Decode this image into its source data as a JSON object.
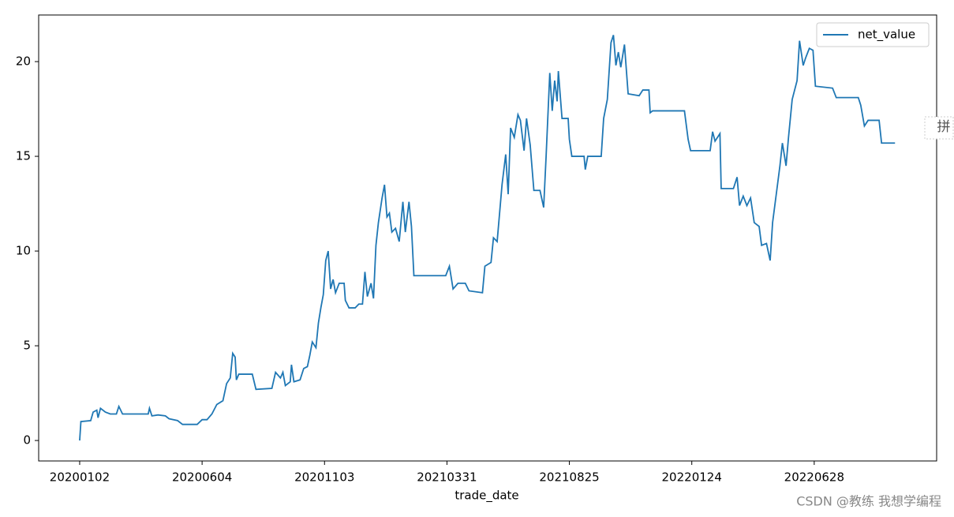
{
  "chart_data": {
    "type": "line",
    "x_label": "trade_date",
    "xlim": [
      -33.5,
      700
    ],
    "ylim": [
      -1.08,
      22.46
    ],
    "xticks": [
      {
        "value": 0,
        "label": "20200102"
      },
      {
        "value": 100,
        "label": "20200604"
      },
      {
        "value": 200,
        "label": "20201103"
      },
      {
        "value": 300,
        "label": "20210331"
      },
      {
        "value": 400,
        "label": "20210825"
      },
      {
        "value": 500,
        "label": "20220124"
      },
      {
        "value": 600,
        "label": "20220628"
      }
    ],
    "yticks": [
      0,
      5,
      10,
      15,
      20
    ],
    "legend": "upper right",
    "series": [
      {
        "name": "net_value",
        "color": "#1f77b4",
        "x": [
          0,
          1,
          9,
          11,
          14,
          15,
          17,
          21,
          25,
          30,
          32,
          35,
          38,
          56,
          57,
          59,
          64,
          70,
          73,
          80,
          84,
          96,
          100,
          104,
          108,
          112,
          117,
          120,
          123,
          125,
          127,
          128,
          130,
          141,
          144,
          157,
          160,
          164,
          166,
          168,
          172,
          173,
          175,
          180,
          183,
          186,
          188,
          190,
          193,
          195,
          197,
          199,
          201,
          203,
          205,
          207,
          209,
          212,
          216,
          217,
          220,
          225,
          228,
          231,
          233,
          235,
          238,
          240,
          242,
          244,
          247,
          249,
          251,
          253,
          255,
          258,
          261,
          264,
          266,
          269,
          271,
          273,
          299,
          302,
          305,
          309,
          315,
          318,
          329,
          331,
          336,
          338,
          341,
          343,
          345,
          348,
          350,
          352,
          355,
          358,
          360,
          363,
          365,
          368,
          371,
          376,
          379,
          381,
          384,
          386,
          388,
          390,
          391,
          394,
          399,
          400,
          402,
          412,
          413,
          415,
          426,
          428,
          431,
          434,
          436,
          438,
          440,
          442,
          445,
          448,
          457,
          460,
          465,
          466,
          468,
          494,
          497,
          499,
          515,
          517,
          519,
          523,
          524,
          534,
          537,
          539,
          542,
          545,
          548,
          551,
          555,
          557,
          561,
          564,
          566,
          569,
          572,
          574,
          577,
          579,
          582,
          586,
          588,
          591,
          593,
          596,
          599,
          601,
          615,
          618,
          636,
          638,
          641,
          644,
          653,
          655,
          666
        ],
        "values": [
          0,
          1.0,
          1.05,
          1.5,
          1.6,
          1.2,
          1.7,
          1.5,
          1.4,
          1.4,
          1.8,
          1.4,
          1.4,
          1.4,
          1.7,
          1.3,
          1.35,
          1.3,
          1.15,
          1.05,
          0.85,
          0.85,
          1.1,
          1.1,
          1.4,
          1.9,
          2.1,
          3.0,
          3.3,
          4.6,
          4.4,
          3.2,
          3.5,
          3.5,
          2.7,
          2.75,
          3.6,
          3.3,
          3.6,
          2.9,
          3.1,
          4.0,
          3.1,
          3.2,
          3.8,
          3.9,
          4.5,
          5.2,
          4.9,
          6.2,
          7.0,
          7.7,
          9.5,
          10.0,
          8.0,
          8.5,
          7.8,
          8.3,
          8.3,
          7.4,
          7.0,
          7.0,
          7.2,
          7.2,
          8.9,
          7.6,
          8.3,
          7.5,
          10.3,
          11.5,
          12.8,
          13.5,
          11.8,
          12.0,
          11.0,
          11.2,
          10.5,
          12.6,
          11.0,
          12.6,
          11.3,
          8.7,
          8.7,
          9.2,
          8.0,
          8.3,
          8.3,
          7.9,
          7.8,
          9.2,
          9.4,
          10.7,
          10.5,
          12.0,
          13.5,
          15.1,
          13.0,
          16.5,
          16.0,
          17.2,
          16.9,
          15.3,
          17.0,
          15.6,
          13.2,
          13.2,
          12.3,
          15.0,
          19.4,
          17.4,
          19.0,
          17.9,
          19.5,
          17.0,
          17.0,
          15.9,
          15.0,
          15.0,
          14.3,
          15.0,
          15.0,
          17.0,
          18.0,
          21.0,
          21.4,
          19.8,
          20.5,
          19.7,
          20.9,
          18.3,
          18.2,
          18.5,
          18.5,
          17.3,
          17.4,
          17.4,
          15.9,
          15.3,
          15.3,
          16.3,
          15.8,
          16.2,
          13.3,
          13.3,
          13.9,
          12.4,
          12.9,
          12.4,
          12.8,
          11.5,
          11.3,
          10.3,
          10.4,
          9.5,
          11.5,
          13.0,
          14.5,
          15.7,
          14.5,
          16.0,
          18.0,
          19.0,
          21.1,
          19.8,
          20.2,
          20.7,
          20.6,
          18.7,
          18.6,
          18.1,
          18.1,
          17.7,
          16.6,
          16.9,
          16.9,
          15.7,
          15.7
        ]
      }
    ]
  },
  "side_icon": "拼",
  "watermark": "CSDN @教练 我想学编程"
}
